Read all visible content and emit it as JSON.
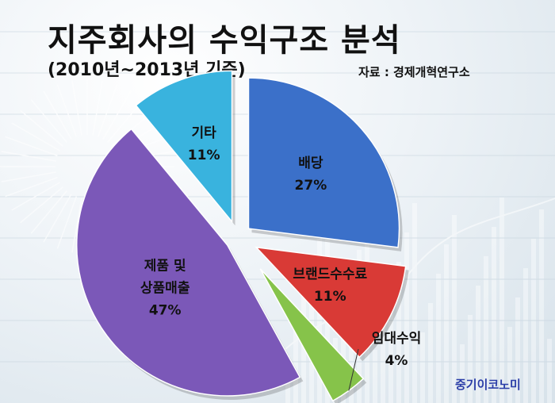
{
  "header": {
    "title": "지주회사의 수익구조 분석",
    "subtitle": "(2010년~2013년 기준)",
    "source": "자료 : 경제개혁연구소"
  },
  "footer": {
    "brand": "중기이코노미"
  },
  "colors": {
    "배당": "#3b70c9",
    "브랜드수수료": "#d93a36",
    "임대수익": "#86c34a",
    "제품 및 상품매출": "#7b58b8",
    "기타": "#39b3de"
  },
  "chart_data": {
    "type": "pie",
    "title": "지주회사의 수익구조 분석",
    "categories": [
      "배당",
      "브랜드수수료",
      "임대수익",
      "제품 및 상품매출",
      "기타"
    ],
    "values": [
      27,
      11,
      4,
      47,
      11
    ],
    "labels": [
      {
        "lines": [
          "배당"
        ],
        "pct": "27%"
      },
      {
        "lines": [
          "브랜드수수료"
        ],
        "pct": "11%"
      },
      {
        "lines": [
          "임대수익"
        ],
        "pct": "4%"
      },
      {
        "lines": [
          "제품 및",
          "상품매출"
        ],
        "pct": "47%"
      },
      {
        "lines": [
          "기타"
        ],
        "pct": "11%"
      }
    ],
    "exploded": true,
    "legend": "none"
  }
}
